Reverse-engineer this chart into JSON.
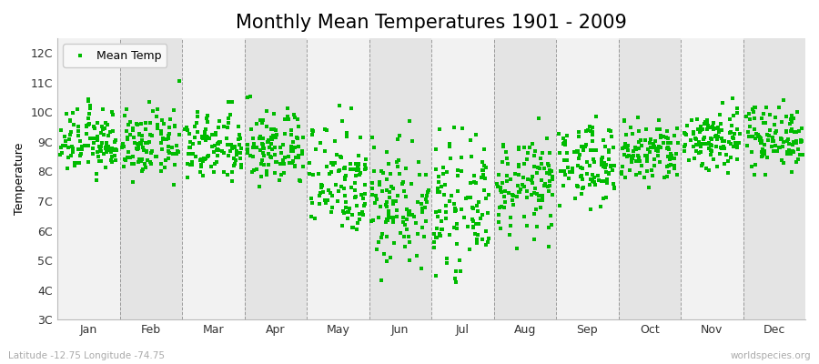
{
  "title": "Monthly Mean Temperatures 1901 - 2009",
  "ylabel": "Temperature",
  "xlabel_labels": [
    "Jan",
    "Feb",
    "Mar",
    "Apr",
    "May",
    "Jun",
    "Jul",
    "Aug",
    "Sep",
    "Oct",
    "Nov",
    "Dec"
  ],
  "ytick_values": [
    3,
    4,
    5,
    6,
    7,
    8,
    9,
    10,
    11,
    12
  ],
  "ytick_labels": [
    "3C",
    "4C",
    "5C",
    "6C",
    "7C",
    "8C",
    "9C",
    "10C",
    "11C",
    "12C"
  ],
  "ylim": [
    3,
    12.5
  ],
  "marker_color": "#00bb00",
  "marker": "s",
  "marker_size": 4,
  "bg_color": "#ffffff",
  "bg_light": "#f2f2f2",
  "bg_dark": "#e4e4e4",
  "grid_color": "#666666",
  "legend_label": "Mean Temp",
  "footer_left": "Latitude -12.75 Longitude -74.75",
  "footer_right": "worldspecies.org",
  "title_fontsize": 15,
  "axis_label_fontsize": 9,
  "tick_fontsize": 9,
  "n_years": 109,
  "seed": 12345,
  "monthly_means": [
    9.0,
    8.9,
    8.8,
    8.8,
    7.8,
    7.0,
    6.8,
    7.5,
    8.3,
    8.6,
    9.1,
    9.2
  ],
  "monthly_stds": [
    0.55,
    0.55,
    0.6,
    0.65,
    1.0,
    1.1,
    1.0,
    0.8,
    0.65,
    0.55,
    0.55,
    0.55
  ],
  "monthly_mins": [
    7.7,
    7.5,
    7.3,
    7.3,
    4.5,
    3.2,
    3.5,
    5.0,
    6.2,
    7.2,
    7.8,
    7.9
  ],
  "monthly_maxs": [
    11.3,
    11.5,
    11.2,
    11.3,
    11.2,
    10.5,
    9.5,
    9.8,
    10.5,
    10.8,
    11.6,
    11.0
  ]
}
